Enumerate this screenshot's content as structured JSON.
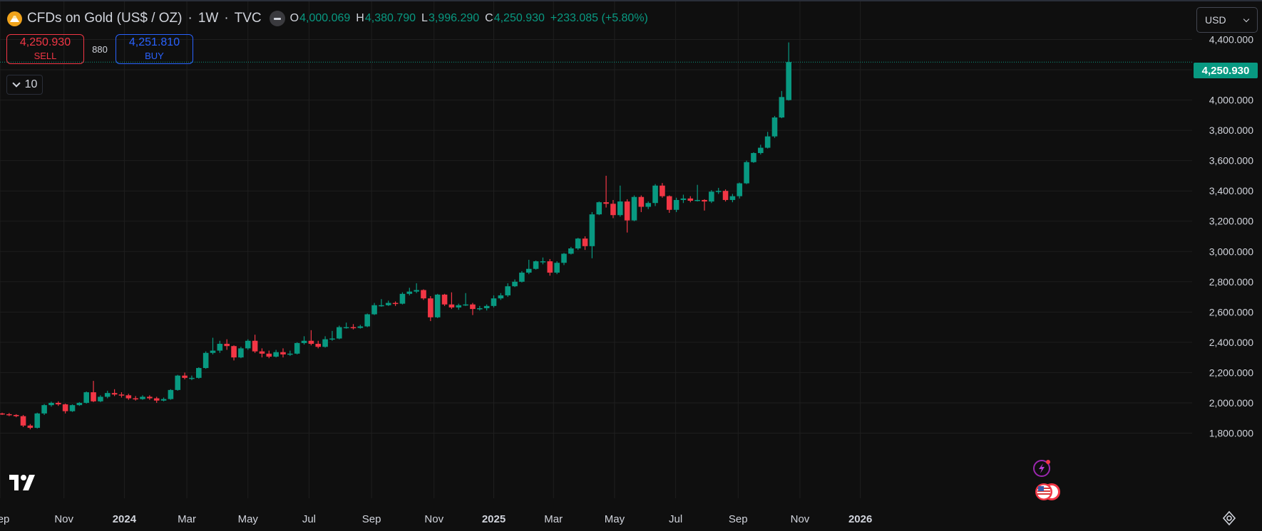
{
  "header": {
    "symbol_title": "CFDs on Gold (US$ / OZ)",
    "interval": "1W",
    "exchange": "TVC",
    "separator": "·",
    "open_key": "O",
    "open": "4,000.069",
    "high_key": "H",
    "high": "4,380.790",
    "low_key": "L",
    "low": "3,996.290",
    "close_key": "C",
    "close": "4,250.930",
    "change": "+233.085 (+5.80%)"
  },
  "trading": {
    "sell_price": "4,250.930",
    "sell_label": "SELL",
    "spread": "880",
    "buy_price": "4,251.810",
    "buy_label": "BUY"
  },
  "indicator_toggle": {
    "value": "10"
  },
  "currency": {
    "selected": "USD"
  },
  "last_price_label": "4,250.930",
  "colors": {
    "background": "#0f0f0f",
    "grid": "#1f1f1f",
    "up": "#089981",
    "down": "#f23645",
    "text": "#d1d4dc",
    "brand_icon": "#f0a31b",
    "buy": "#2962ff"
  },
  "icons": [
    "gold-coin-icon",
    "collapse-icon",
    "chevron-down-icon",
    "tradingview-logo-icon",
    "lightning-icon",
    "us-flag-icon",
    "gear-icon"
  ],
  "chart_data": {
    "type": "candlestick",
    "title": "CFDs on Gold (US$ / OZ) · 1W · TVC",
    "ylim": [
      1750,
      4450
    ],
    "y_ticks": [
      1800,
      2000,
      2200,
      2400,
      2600,
      2800,
      3000,
      3200,
      3400,
      3600,
      3800,
      4000,
      4200,
      4400
    ],
    "y_tick_labels": [
      "1,800.000",
      "2,000.000",
      "2,200.000",
      "2,400.000",
      "2,600.000",
      "2,800.000",
      "3,000.000",
      "3,200.000",
      "3,400.000",
      "3,600.000",
      "3,800.000",
      "4,000.000",
      "4,200.000",
      "4,400.000"
    ],
    "x_axis": [
      {
        "label": "Sep",
        "index": -0.3
      },
      {
        "label": "Nov",
        "index": 8.8
      },
      {
        "label": "2024",
        "index": 17.4
      },
      {
        "label": "Mar",
        "index": 26.3
      },
      {
        "label": "May",
        "index": 35.0
      },
      {
        "label": "Jul",
        "index": 43.7
      },
      {
        "label": "Sep",
        "index": 52.6
      },
      {
        "label": "Nov",
        "index": 61.5
      },
      {
        "label": "2025",
        "index": 70.0
      },
      {
        "label": "Mar",
        "index": 78.5
      },
      {
        "label": "May",
        "index": 87.2
      },
      {
        "label": "Jul",
        "index": 95.9
      },
      {
        "label": "Sep",
        "index": 104.8
      },
      {
        "label": "Nov",
        "index": 113.6
      },
      {
        "label": "2026",
        "index": 122.2
      }
    ],
    "last_price": 4250.93,
    "candles": [
      [
        1930,
        1925,
        1935,
        1920
      ],
      [
        1925,
        1920,
        1933,
        1912
      ],
      [
        1920,
        1912,
        1925,
        1905
      ],
      [
        1912,
        1850,
        1920,
        1840
      ],
      [
        1850,
        1835,
        1860,
        1825
      ],
      [
        1835,
        1930,
        1935,
        1830
      ],
      [
        1930,
        1985,
        1992,
        1920
      ],
      [
        1985,
        2000,
        2008,
        1975
      ],
      [
        2000,
        1990,
        2010,
        1980
      ],
      [
        1990,
        1945,
        1995,
        1930
      ],
      [
        1945,
        1985,
        1990,
        1940
      ],
      [
        1985,
        2000,
        2005,
        1980
      ],
      [
        2000,
        2070,
        2075,
        1995
      ],
      [
        2070,
        2010,
        2145,
        2005
      ],
      [
        2010,
        2040,
        2050,
        2005
      ],
      [
        2040,
        2065,
        2080,
        2030
      ],
      [
        2065,
        2055,
        2090,
        2045
      ],
      [
        2055,
        2050,
        2070,
        2035
      ],
      [
        2050,
        2030,
        2060,
        2020
      ],
      [
        2030,
        2025,
        2045,
        2015
      ],
      [
        2025,
        2040,
        2050,
        2020
      ],
      [
        2040,
        2030,
        2050,
        2020
      ],
      [
        2030,
        2015,
        2040,
        2000
      ],
      [
        2015,
        2025,
        2035,
        2010
      ],
      [
        2025,
        2085,
        2090,
        2020
      ],
      [
        2085,
        2180,
        2185,
        2080
      ],
      [
        2180,
        2165,
        2200,
        2155
      ],
      [
        2165,
        2165,
        2180,
        2150
      ],
      [
        2165,
        2230,
        2235,
        2160
      ],
      [
        2230,
        2330,
        2340,
        2225
      ],
      [
        2330,
        2345,
        2430,
        2320
      ],
      [
        2345,
        2390,
        2410,
        2330
      ],
      [
        2390,
        2375,
        2420,
        2350
      ],
      [
        2375,
        2300,
        2380,
        2280
      ],
      [
        2300,
        2360,
        2370,
        2295
      ],
      [
        2360,
        2410,
        2420,
        2350
      ],
      [
        2410,
        2340,
        2450,
        2330
      ],
      [
        2340,
        2325,
        2360,
        2300
      ],
      [
        2325,
        2305,
        2345,
        2295
      ],
      [
        2305,
        2335,
        2350,
        2300
      ],
      [
        2335,
        2320,
        2360,
        2300
      ],
      [
        2320,
        2325,
        2345,
        2310
      ],
      [
        2325,
        2395,
        2400,
        2320
      ],
      [
        2395,
        2410,
        2440,
        2385
      ],
      [
        2410,
        2390,
        2480,
        2380
      ],
      [
        2390,
        2370,
        2410,
        2360
      ],
      [
        2370,
        2420,
        2440,
        2365
      ],
      [
        2420,
        2425,
        2475,
        2410
      ],
      [
        2425,
        2500,
        2510,
        2420
      ],
      [
        2500,
        2500,
        2530,
        2490
      ],
      [
        2500,
        2495,
        2520,
        2485
      ],
      [
        2495,
        2505,
        2515,
        2490
      ],
      [
        2505,
        2585,
        2590,
        2500
      ],
      [
        2585,
        2645,
        2660,
        2580
      ],
      [
        2645,
        2645,
        2685,
        2635
      ],
      [
        2645,
        2660,
        2675,
        2640
      ],
      [
        2660,
        2655,
        2670,
        2640
      ],
      [
        2655,
        2720,
        2730,
        2650
      ],
      [
        2720,
        2735,
        2760,
        2710
      ],
      [
        2735,
        2745,
        2790,
        2725
      ],
      [
        2745,
        2690,
        2750,
        2680
      ],
      [
        2690,
        2565,
        2705,
        2540
      ],
      [
        2565,
        2715,
        2720,
        2560
      ],
      [
        2715,
        2650,
        2720,
        2640
      ],
      [
        2650,
        2630,
        2730,
        2620
      ],
      [
        2630,
        2645,
        2655,
        2615
      ],
      [
        2645,
        2650,
        2725,
        2640
      ],
      [
        2650,
        2620,
        2660,
        2580
      ],
      [
        2620,
        2625,
        2640,
        2610
      ],
      [
        2625,
        2640,
        2650,
        2610
      ],
      [
        2640,
        2690,
        2710,
        2630
      ],
      [
        2690,
        2710,
        2725,
        2680
      ],
      [
        2710,
        2770,
        2790,
        2700
      ],
      [
        2770,
        2800,
        2815,
        2765
      ],
      [
        2800,
        2860,
        2870,
        2795
      ],
      [
        2860,
        2885,
        2945,
        2850
      ],
      [
        2885,
        2935,
        2940,
        2880
      ],
      [
        2935,
        2935,
        2960,
        2915
      ],
      [
        2935,
        2860,
        2950,
        2840
      ],
      [
        2860,
        2925,
        2935,
        2850
      ],
      [
        2925,
        2985,
        2990,
        2910
      ],
      [
        2985,
        3020,
        3030,
        2980
      ],
      [
        3020,
        3085,
        3090,
        3010
      ],
      [
        3085,
        3035,
        3100,
        3010
      ],
      [
        3035,
        3245,
        3260,
        2955
      ],
      [
        3245,
        3325,
        3330,
        3240
      ],
      [
        3325,
        3315,
        3500,
        3290
      ],
      [
        3315,
        3240,
        3340,
        3220
      ],
      [
        3240,
        3330,
        3435,
        3230
      ],
      [
        3330,
        3205,
        3345,
        3125
      ],
      [
        3205,
        3360,
        3370,
        3200
      ],
      [
        3360,
        3295,
        3370,
        3260
      ],
      [
        3295,
        3320,
        3330,
        3280
      ],
      [
        3320,
        3435,
        3445,
        3300
      ],
      [
        3435,
        3365,
        3452,
        3355
      ],
      [
        3365,
        3275,
        3370,
        3255
      ],
      [
        3275,
        3340,
        3355,
        3260
      ],
      [
        3340,
        3350,
        3375,
        3320
      ],
      [
        3350,
        3335,
        3365,
        3325
      ],
      [
        3335,
        3340,
        3440,
        3330
      ],
      [
        3340,
        3330,
        3345,
        3270
      ],
      [
        3330,
        3395,
        3405,
        3320
      ],
      [
        3395,
        3400,
        3420,
        3380
      ],
      [
        3400,
        3340,
        3410,
        3330
      ],
      [
        3340,
        3365,
        3380,
        3325
      ],
      [
        3365,
        3450,
        3455,
        3350
      ],
      [
        3450,
        3590,
        3600,
        3445
      ],
      [
        3590,
        3650,
        3655,
        3585
      ],
      [
        3650,
        3685,
        3705,
        3640
      ],
      [
        3685,
        3760,
        3790,
        3680
      ],
      [
        3760,
        3885,
        3895,
        3750
      ],
      [
        3885,
        4020,
        4060,
        3880
      ],
      [
        4000.069,
        4250.93,
        4380.79,
        3996.29
      ]
    ]
  }
}
